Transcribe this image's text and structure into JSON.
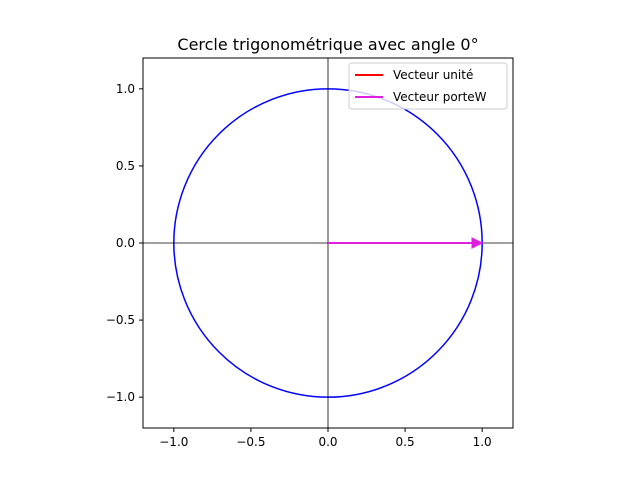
{
  "chart_data": {
    "type": "line",
    "title": "Cercle trigonométrique avec angle 0°",
    "xlabel": "",
    "ylabel": "",
    "xlim": [
      -1.2,
      1.2
    ],
    "ylim": [
      -1.2,
      1.2
    ],
    "x_ticks": [
      {
        "value": -1.0,
        "label": "−1.0"
      },
      {
        "value": -0.5,
        "label": "−0.5"
      },
      {
        "value": 0.0,
        "label": "0.0"
      },
      {
        "value": 0.5,
        "label": "0.5"
      },
      {
        "value": 1.0,
        "label": "1.0"
      }
    ],
    "y_ticks": [
      {
        "value": -1.0,
        "label": "−1.0"
      },
      {
        "value": -0.5,
        "label": "−0.5"
      },
      {
        "value": 0.0,
        "label": "0.0"
      },
      {
        "value": 0.5,
        "label": "0.5"
      },
      {
        "value": 1.0,
        "label": "1.0"
      }
    ],
    "grid": false,
    "legend_position": "top-right",
    "circle": {
      "center": [
        0,
        0
      ],
      "radius": 1.0,
      "color": "#0000ff"
    },
    "axis_lines": {
      "x": 0,
      "y": 0,
      "color": "#000000"
    },
    "series": [
      {
        "name": "Vecteur unité",
        "color": "#ff0000",
        "start": [
          0,
          0
        ],
        "end": [
          1,
          0
        ]
      },
      {
        "name": "Vecteur porteW",
        "color": "#e020e0",
        "start": [
          0,
          0
        ],
        "end": [
          1,
          0
        ]
      }
    ]
  }
}
